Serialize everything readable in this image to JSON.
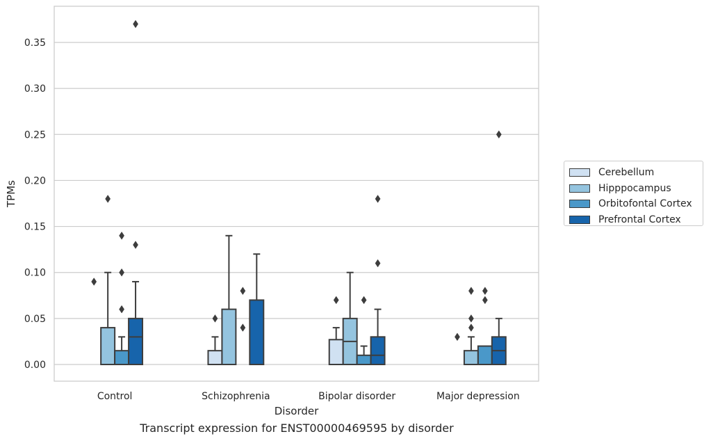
{
  "chart_data": {
    "type": "box",
    "title": "Transcript expression for ENST00000469595 by disorder",
    "xlabel": "Disorder",
    "ylabel": "TPMs",
    "ylim": [
      -0.018,
      0.388
    ],
    "yticks": [
      0.0,
      0.05,
      0.1,
      0.15,
      0.2,
      0.25,
      0.3,
      0.35
    ],
    "ytick_labels": [
      "0.00",
      "0.05",
      "0.10",
      "0.15",
      "0.20",
      "0.25",
      "0.30",
      "0.35"
    ],
    "grid": "horizontal",
    "legend_position": "outside-right",
    "categories": [
      "Control",
      "Schizophrenia",
      "Bipolar disorder",
      "Major depression"
    ],
    "series": [
      {
        "name": "Cerebellum",
        "color": "#d0e1f2",
        "boxes": [
          {
            "q1": 0.0,
            "median": 0.0,
            "q3": 0.0,
            "whisker_low": 0.0,
            "whisker_high": 0.0,
            "outliers": [
              0.09
            ]
          },
          {
            "q1": 0.0,
            "median": 0.0,
            "q3": 0.015,
            "whisker_low": 0.0,
            "whisker_high": 0.03,
            "outliers": [
              0.05
            ]
          },
          {
            "q1": 0.0,
            "median": 0.0,
            "q3": 0.027,
            "whisker_low": 0.0,
            "whisker_high": 0.04,
            "outliers": [
              0.07
            ]
          },
          {
            "q1": 0.0,
            "median": 0.0,
            "q3": 0.0,
            "whisker_low": 0.0,
            "whisker_high": 0.0,
            "outliers": [
              0.03
            ]
          }
        ]
      },
      {
        "name": "Hipppocampus",
        "color": "#94c4df",
        "boxes": [
          {
            "q1": 0.0,
            "median": 0.0,
            "q3": 0.04,
            "whisker_low": 0.0,
            "whisker_high": 0.1,
            "outliers": [
              0.18
            ]
          },
          {
            "q1": 0.0,
            "median": 0.0,
            "q3": 0.06,
            "whisker_low": 0.0,
            "whisker_high": 0.14,
            "outliers": []
          },
          {
            "q1": 0.0,
            "median": 0.025,
            "q3": 0.05,
            "whisker_low": 0.0,
            "whisker_high": 0.1,
            "outliers": []
          },
          {
            "q1": 0.0,
            "median": 0.0,
            "q3": 0.015,
            "whisker_low": 0.0,
            "whisker_high": 0.03,
            "outliers": [
              0.04,
              0.05,
              0.08
            ]
          }
        ]
      },
      {
        "name": "Orbitofontal Cortex",
        "color": "#4a98c9",
        "boxes": [
          {
            "q1": 0.0,
            "median": 0.0,
            "q3": 0.015,
            "whisker_low": 0.0,
            "whisker_high": 0.03,
            "outliers": [
              0.06,
              0.1,
              0.14
            ]
          },
          {
            "q1": 0.0,
            "median": 0.0,
            "q3": 0.0,
            "whisker_low": 0.0,
            "whisker_high": 0.0,
            "outliers": [
              0.04,
              0.08
            ]
          },
          {
            "q1": 0.0,
            "median": 0.0,
            "q3": 0.01,
            "whisker_low": 0.0,
            "whisker_high": 0.02,
            "outliers": [
              0.07
            ]
          },
          {
            "q1": 0.0,
            "median": 0.0,
            "q3": 0.02,
            "whisker_low": 0.0,
            "whisker_high": 0.02,
            "outliers": [
              0.07,
              0.08
            ]
          }
        ]
      },
      {
        "name": "Prefrontal Cortex",
        "color": "#1764ab",
        "boxes": [
          {
            "q1": 0.0,
            "median": 0.03,
            "q3": 0.05,
            "whisker_low": 0.0,
            "whisker_high": 0.09,
            "outliers": [
              0.13,
              0.37
            ]
          },
          {
            "q1": 0.0,
            "median": 0.0,
            "q3": 0.07,
            "whisker_low": 0.0,
            "whisker_high": 0.12,
            "outliers": []
          },
          {
            "q1": 0.0,
            "median": 0.01,
            "q3": 0.03,
            "whisker_low": 0.0,
            "whisker_high": 0.06,
            "outliers": [
              0.11,
              0.18
            ]
          },
          {
            "q1": 0.0,
            "median": 0.015,
            "q3": 0.03,
            "whisker_low": 0.0,
            "whisker_high": 0.05,
            "outliers": [
              0.25
            ]
          }
        ]
      }
    ]
  }
}
